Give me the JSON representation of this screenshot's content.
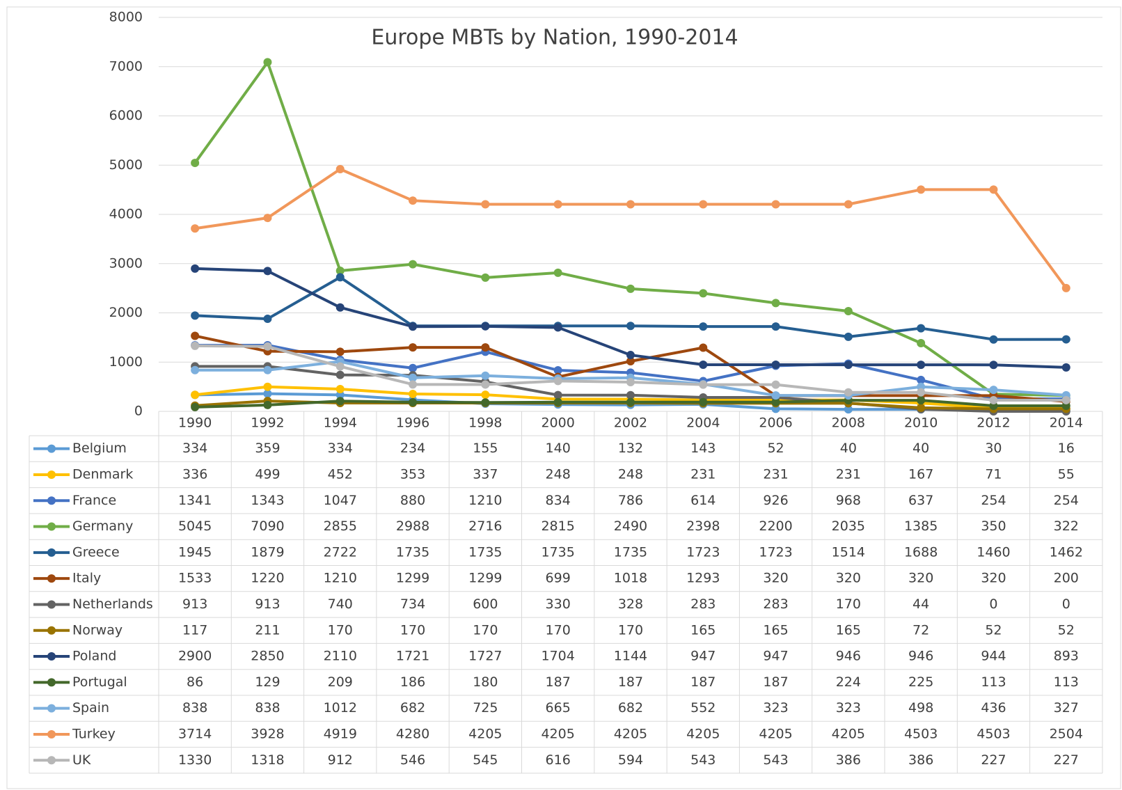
{
  "chart_data": {
    "type": "line",
    "title": "Europe MBTs by Nation, 1990-2014",
    "categories": [
      "1990",
      "1992",
      "1994",
      "1996",
      "1998",
      "2000",
      "2002",
      "2004",
      "2006",
      "2008",
      "2010",
      "2012",
      "2014"
    ],
    "ylim": [
      0,
      8000
    ],
    "yticks": [
      0,
      1000,
      2000,
      3000,
      4000,
      5000,
      6000,
      7000,
      8000
    ],
    "grid": true,
    "series": [
      {
        "name": "Belgium",
        "color": "#5b9bd5",
        "values": [
          334,
          359,
          334,
          234,
          155,
          140,
          132,
          143,
          52,
          40,
          40,
          30,
          16
        ]
      },
      {
        "name": "Denmark",
        "color": "#ffc000",
        "values": [
          336,
          499,
          452,
          353,
          337,
          248,
          248,
          231,
          231,
          231,
          167,
          71,
          55
        ]
      },
      {
        "name": "France",
        "color": "#4472c4",
        "values": [
          1341,
          1343,
          1047,
          880,
          1210,
          834,
          786,
          614,
          926,
          968,
          637,
          254,
          254
        ]
      },
      {
        "name": "Germany",
        "color": "#70ad47",
        "values": [
          5045,
          7090,
          2855,
          2988,
          2716,
          2815,
          2490,
          2398,
          2200,
          2035,
          1385,
          350,
          322
        ]
      },
      {
        "name": "Greece",
        "color": "#255e91",
        "values": [
          1945,
          1879,
          2722,
          1735,
          1735,
          1735,
          1735,
          1723,
          1723,
          1514,
          1688,
          1460,
          1462
        ]
      },
      {
        "name": "Italy",
        "color": "#9e480e",
        "values": [
          1533,
          1220,
          1210,
          1299,
          1299,
          699,
          1018,
          1293,
          320,
          320,
          320,
          320,
          200
        ]
      },
      {
        "name": "Netherlands",
        "color": "#636363",
        "values": [
          913,
          913,
          740,
          734,
          600,
          330,
          328,
          283,
          283,
          170,
          44,
          0,
          0
        ]
      },
      {
        "name": "Norway",
        "color": "#997300",
        "values": [
          117,
          211,
          170,
          170,
          170,
          170,
          170,
          165,
          165,
          165,
          72,
          52,
          52
        ]
      },
      {
        "name": "Poland",
        "color": "#264478",
        "values": [
          2900,
          2850,
          2110,
          1721,
          1727,
          1704,
          1144,
          947,
          947,
          946,
          946,
          944,
          893
        ]
      },
      {
        "name": "Portugal",
        "color": "#43682b",
        "values": [
          86,
          129,
          209,
          186,
          180,
          187,
          187,
          187,
          187,
          224,
          225,
          113,
          113
        ]
      },
      {
        "name": "Spain",
        "color": "#7cafdd",
        "values": [
          838,
          838,
          1012,
          682,
          725,
          665,
          682,
          552,
          323,
          323,
          498,
          436,
          327
        ]
      },
      {
        "name": "Turkey",
        "color": "#f1975a",
        "values": [
          3714,
          3928,
          4919,
          4280,
          4205,
          4205,
          4205,
          4205,
          4205,
          4205,
          4503,
          4503,
          2504
        ]
      },
      {
        "name": "UK",
        "color": "#b7b7b7",
        "values": [
          1330,
          1318,
          912,
          546,
          545,
          616,
          594,
          543,
          543,
          386,
          386,
          227,
          227
        ]
      }
    ]
  }
}
